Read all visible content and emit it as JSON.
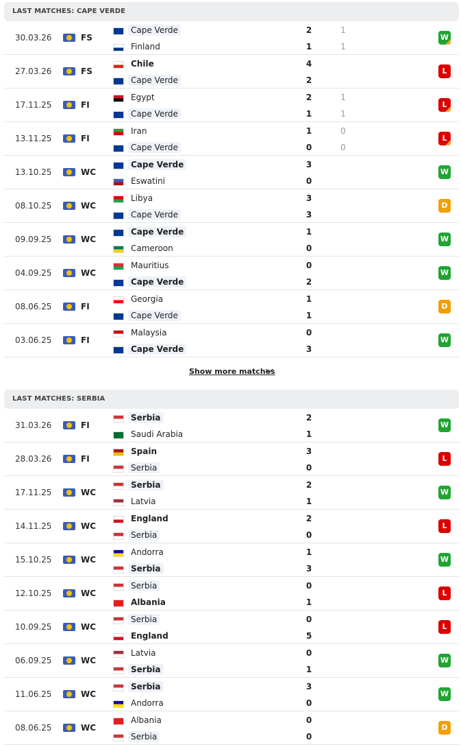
{
  "result_colors": {
    "W": "#1ea532",
    "L": "#dc0000",
    "D": "#f0a000"
  },
  "show_more": "Show more matches",
  "sections": [
    {
      "title": "LAST MATCHES: CAPE VERDE",
      "matches": [
        {
          "date": "30.03.26",
          "comp": "FS",
          "home": {
            "name": "Cape Verde",
            "score": 2,
            "ht": 1,
            "flag": [
              "#003893",
              "#003893"
            ]
          },
          "away": {
            "name": "Finland",
            "score": 1,
            "ht": 1,
            "flag": [
              "#ffffff",
              "#003580"
            ]
          },
          "bold": null,
          "focus": "home",
          "result": "W",
          "corner": true
        },
        {
          "date": "27.03.26",
          "comp": "FS",
          "home": {
            "name": "Chile",
            "score": 4,
            "flag": [
              "#ffffff",
              "#d52b1e"
            ]
          },
          "away": {
            "name": "Cape Verde",
            "score": 2,
            "flag": [
              "#003893",
              "#003893"
            ]
          },
          "bold": "home",
          "focus": "away",
          "result": "L",
          "corner": false
        },
        {
          "date": "17.11.25",
          "comp": "FI",
          "home": {
            "name": "Egypt",
            "score": 2,
            "ht": 1,
            "flag": [
              "#ce1126",
              "#000000"
            ]
          },
          "away": {
            "name": "Cape Verde",
            "score": 1,
            "ht": 1,
            "flag": [
              "#003893",
              "#003893"
            ]
          },
          "bold": null,
          "focus": "away",
          "result": "L",
          "corner": true
        },
        {
          "date": "13.11.25",
          "comp": "FI",
          "home": {
            "name": "Iran",
            "score": 1,
            "ht": 0,
            "flag": [
              "#239f40",
              "#da0000"
            ]
          },
          "away": {
            "name": "Cape Verde",
            "score": 0,
            "ht": 0,
            "flag": [
              "#003893",
              "#003893"
            ]
          },
          "bold": null,
          "focus": "away",
          "result": "L",
          "corner": true
        },
        {
          "date": "13.10.25",
          "comp": "WC",
          "home": {
            "name": "Cape Verde",
            "score": 3,
            "flag": [
              "#003893",
              "#003893"
            ]
          },
          "away": {
            "name": "Eswatini",
            "score": 0,
            "flag": [
              "#3e5eb9",
              "#b10c0c"
            ]
          },
          "bold": "home",
          "focus": "home",
          "result": "W",
          "corner": false
        },
        {
          "date": "08.10.25",
          "comp": "WC",
          "home": {
            "name": "Libya",
            "score": 3,
            "flag": [
              "#e70013",
              "#239e46"
            ]
          },
          "away": {
            "name": "Cape Verde",
            "score": 3,
            "flag": [
              "#003893",
              "#003893"
            ]
          },
          "bold": null,
          "focus": "away",
          "result": "D",
          "corner": false
        },
        {
          "date": "09.09.25",
          "comp": "WC",
          "home": {
            "name": "Cape Verde",
            "score": 1,
            "flag": [
              "#003893",
              "#003893"
            ]
          },
          "away": {
            "name": "Cameroon",
            "score": 0,
            "flag": [
              "#007a5e",
              "#fcd116"
            ]
          },
          "bold": "home",
          "focus": "home",
          "result": "W",
          "corner": false
        },
        {
          "date": "04.09.25",
          "comp": "WC",
          "home": {
            "name": "Mauritius",
            "score": 0,
            "flag": [
              "#ea2839",
              "#00a551"
            ]
          },
          "away": {
            "name": "Cape Verde",
            "score": 2,
            "flag": [
              "#003893",
              "#003893"
            ]
          },
          "bold": "away",
          "focus": "away",
          "result": "W",
          "corner": false
        },
        {
          "date": "08.06.25",
          "comp": "FI",
          "home": {
            "name": "Georgia",
            "score": 1,
            "flag": [
              "#ffffff",
              "#ff0000"
            ]
          },
          "away": {
            "name": "Cape Verde",
            "score": 1,
            "flag": [
              "#003893",
              "#003893"
            ]
          },
          "bold": null,
          "focus": "away",
          "result": "D",
          "corner": false
        },
        {
          "date": "03.06.25",
          "comp": "FI",
          "home": {
            "name": "Malaysia",
            "score": 0,
            "flag": [
              "#cc0001",
              "#ffffff"
            ]
          },
          "away": {
            "name": "Cape Verde",
            "score": 3,
            "flag": [
              "#003893",
              "#003893"
            ]
          },
          "bold": "away",
          "focus": "away",
          "result": "W",
          "corner": false
        }
      ]
    },
    {
      "title": "LAST MATCHES: SERBIA",
      "matches": [
        {
          "date": "31.03.26",
          "comp": "FI",
          "home": {
            "name": "Serbia",
            "score": 2,
            "flag": [
              "#c6363c",
              "#ffffff"
            ]
          },
          "away": {
            "name": "Saudi Arabia",
            "score": 1,
            "flag": [
              "#006c35",
              "#006c35"
            ]
          },
          "bold": "home",
          "focus": "home",
          "result": "W",
          "corner": false
        },
        {
          "date": "28.03.26",
          "comp": "FI",
          "home": {
            "name": "Spain",
            "score": 3,
            "flag": [
              "#aa151b",
              "#f1bf00"
            ]
          },
          "away": {
            "name": "Serbia",
            "score": 0,
            "flag": [
              "#c6363c",
              "#ffffff"
            ]
          },
          "bold": "home",
          "focus": "away",
          "result": "L",
          "corner": false
        },
        {
          "date": "17.11.25",
          "comp": "WC",
          "home": {
            "name": "Serbia",
            "score": 2,
            "flag": [
              "#c6363c",
              "#ffffff"
            ]
          },
          "away": {
            "name": "Latvia",
            "score": 1,
            "flag": [
              "#9e3039",
              "#ffffff"
            ]
          },
          "bold": "home",
          "focus": "home",
          "result": "W",
          "corner": false
        },
        {
          "date": "14.11.25",
          "comp": "WC",
          "home": {
            "name": "England",
            "score": 2,
            "flag": [
              "#ffffff",
              "#ce1124"
            ]
          },
          "away": {
            "name": "Serbia",
            "score": 0,
            "flag": [
              "#c6363c",
              "#ffffff"
            ]
          },
          "bold": "home",
          "focus": "away",
          "result": "L",
          "corner": false
        },
        {
          "date": "15.10.25",
          "comp": "WC",
          "home": {
            "name": "Andorra",
            "score": 1,
            "flag": [
              "#10069f",
              "#fedf00"
            ]
          },
          "away": {
            "name": "Serbia",
            "score": 3,
            "flag": [
              "#c6363c",
              "#ffffff"
            ]
          },
          "bold": "away",
          "focus": "away",
          "result": "W",
          "corner": false
        },
        {
          "date": "12.10.25",
          "comp": "WC",
          "home": {
            "name": "Serbia",
            "score": 0,
            "flag": [
              "#c6363c",
              "#ffffff"
            ]
          },
          "away": {
            "name": "Albania",
            "score": 1,
            "flag": [
              "#e41e20",
              "#e41e20"
            ]
          },
          "bold": "away",
          "focus": "home",
          "result": "L",
          "corner": false
        },
        {
          "date": "10.09.25",
          "comp": "WC",
          "home": {
            "name": "Serbia",
            "score": 0,
            "flag": [
              "#c6363c",
              "#ffffff"
            ]
          },
          "away": {
            "name": "England",
            "score": 5,
            "flag": [
              "#ffffff",
              "#ce1124"
            ]
          },
          "bold": "away",
          "focus": "home",
          "result": "L",
          "corner": false
        },
        {
          "date": "06.09.25",
          "comp": "WC",
          "home": {
            "name": "Latvia",
            "score": 0,
            "flag": [
              "#9e3039",
              "#ffffff"
            ]
          },
          "away": {
            "name": "Serbia",
            "score": 1,
            "flag": [
              "#c6363c",
              "#ffffff"
            ]
          },
          "bold": "away",
          "focus": "away",
          "result": "W",
          "corner": false
        },
        {
          "date": "11.06.25",
          "comp": "WC",
          "home": {
            "name": "Serbia",
            "score": 3,
            "flag": [
              "#c6363c",
              "#ffffff"
            ]
          },
          "away": {
            "name": "Andorra",
            "score": 0,
            "flag": [
              "#10069f",
              "#fedf00"
            ]
          },
          "bold": "home",
          "focus": "home",
          "result": "W",
          "corner": false
        },
        {
          "date": "08.06.25",
          "comp": "WC",
          "home": {
            "name": "Albania",
            "score": 0,
            "flag": [
              "#e41e20",
              "#e41e20"
            ]
          },
          "away": {
            "name": "Serbia",
            "score": 0,
            "flag": [
              "#c6363c",
              "#ffffff"
            ]
          },
          "bold": null,
          "focus": "away",
          "result": "D",
          "corner": false
        }
      ]
    }
  ]
}
